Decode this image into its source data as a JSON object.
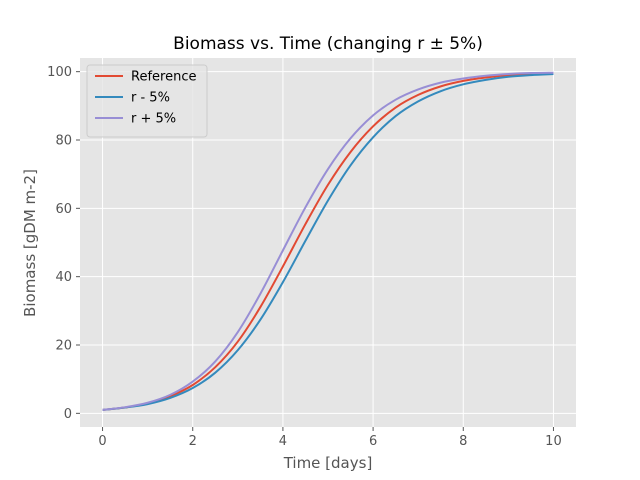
{
  "chart_data": {
    "type": "line",
    "title": "Biomass vs. Time (changing r ± 5%)",
    "xlabel": "Time [days]",
    "ylabel": "Biomass [gDM m-2]",
    "xlim": [
      -0.5,
      10.5
    ],
    "ylim": [
      -4,
      104
    ],
    "xticks": [
      0,
      2,
      4,
      6,
      8,
      10
    ],
    "yticks": [
      0,
      20,
      40,
      60,
      80,
      100
    ],
    "grid": true,
    "legend_position": "top-left",
    "x": [
      0,
      0.5,
      1,
      1.5,
      2,
      2.5,
      3,
      3.5,
      4,
      4.5,
      5,
      5.5,
      6,
      6.5,
      7,
      7.5,
      8,
      8.5,
      9,
      9.5,
      10
    ],
    "series": [
      {
        "name": "Reference",
        "color": "#E24A33",
        "values": [
          1.0,
          1.7,
          2.9,
          5.0,
          8.3,
          13.5,
          21.0,
          31.1,
          43.0,
          55.4,
          66.9,
          76.5,
          84.0,
          89.5,
          93.2,
          95.7,
          97.3,
          98.3,
          99.0,
          99.4,
          99.6
        ]
      },
      {
        "name": "r - 5%",
        "color": "#348ABD",
        "values": [
          1.0,
          1.7,
          2.7,
          4.5,
          7.4,
          11.9,
          18.5,
          27.4,
          38.4,
          50.5,
          62.3,
          72.6,
          80.8,
          87.0,
          91.3,
          94.3,
          96.3,
          97.6,
          98.5,
          99.0,
          99.3
        ]
      },
      {
        "name": "r + 5%",
        "color": "#988ED5",
        "values": [
          1.0,
          1.8,
          3.1,
          5.4,
          9.3,
          15.2,
          23.8,
          35.0,
          47.7,
          60.3,
          71.5,
          80.5,
          87.2,
          91.8,
          94.8,
          96.8,
          98.0,
          98.8,
          99.3,
          99.6,
          99.7
        ]
      }
    ]
  }
}
